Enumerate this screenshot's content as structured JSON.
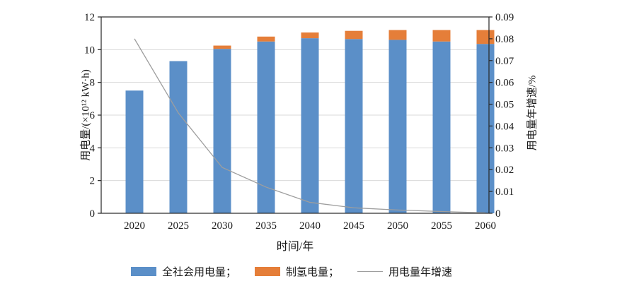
{
  "chart_data": {
    "type": "bar",
    "subtype": "stacked-bars-with-line-dual-axis",
    "categories": [
      "2020",
      "2025",
      "2030",
      "2035",
      "2040",
      "2045",
      "2050",
      "2055",
      "2060"
    ],
    "series": [
      {
        "name": "全社会用电量",
        "type": "bar",
        "axis": "left",
        "color": "#5b8fc8",
        "values": [
          7.5,
          9.3,
          10.05,
          10.5,
          10.7,
          10.65,
          10.6,
          10.5,
          10.35
        ]
      },
      {
        "name": "制氢电量",
        "type": "bar",
        "axis": "left",
        "color": "#e57e39",
        "values": [
          0,
          0,
          0.2,
          0.3,
          0.35,
          0.5,
          0.6,
          0.7,
          0.85
        ]
      },
      {
        "name": "用电量年增速",
        "type": "line",
        "axis": "right",
        "color": "#9e9e9e",
        "values": [
          0.08,
          0.046,
          0.021,
          0.012,
          0.005,
          0.0025,
          0.0015,
          0.0008,
          0.0002
        ]
      }
    ],
    "left_axis": {
      "label": "用电量/(×10¹² kW·h)",
      "min": 0,
      "max": 12,
      "ticks": [
        "0",
        "2",
        "4",
        "6",
        "8",
        "10",
        "12"
      ]
    },
    "right_axis": {
      "label": "用电量年增速/%",
      "min": 0,
      "max": 0.09,
      "ticks": [
        "0",
        "0.01",
        "0.02",
        "0.03",
        "0.04",
        "0.05",
        "0.06",
        "0.07",
        "0.08",
        "0.09"
      ]
    },
    "x_axis": {
      "label": "时间/年"
    },
    "grid": true,
    "frame_color": "#262626",
    "grid_color": "#d9d9d9",
    "legend": {
      "position": "bottom",
      "entries": [
        {
          "label": "全社会用电量；",
          "type": "swatch",
          "color": "#5b8fc8"
        },
        {
          "label": "制氢电量；",
          "type": "swatch",
          "color": "#e57e39"
        },
        {
          "label": "用电量年增速",
          "type": "line",
          "color": "#9e9e9e"
        }
      ]
    }
  }
}
